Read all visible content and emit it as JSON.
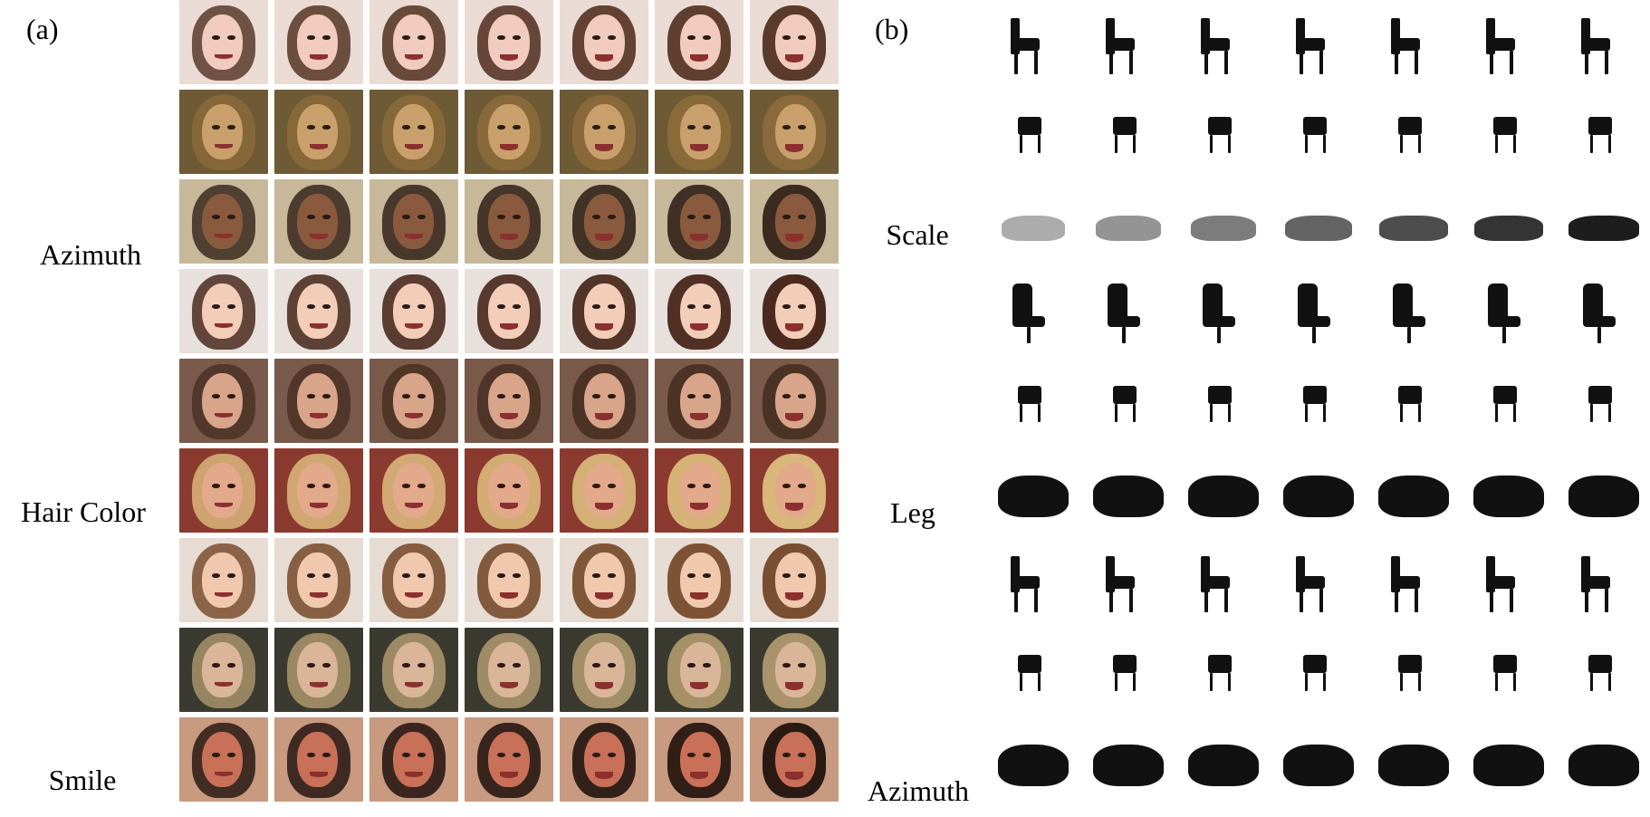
{
  "figure": {
    "panels": [
      {
        "label": "(a)",
        "rows": 9,
        "cols": 7,
        "row_labels": [
          {
            "text": "Azimuth",
            "row": 2
          },
          {
            "text": "Hair Color",
            "row": 5
          },
          {
            "text": "Smile",
            "row": 8
          }
        ],
        "row_styles": [
          {
            "bg": "#eadbd5",
            "hair": "#5a3a2a",
            "skin": "#f0cbbe"
          },
          {
            "bg": "#6e5a35",
            "hair": "#8a6a3a",
            "skin": "#c9a06b"
          },
          {
            "bg": "#c8b89a",
            "hair": "#3a2a20",
            "skin": "#8a5a3e"
          },
          {
            "bg": "#e8e0dc",
            "hair": "#4a2a1e",
            "skin": "#f2cdb8"
          },
          {
            "bg": "#7a5a4a",
            "hair": "#4a3224",
            "skin": "#d8a48a"
          },
          {
            "bg": "#8a3a2e",
            "hair": "#d9b67a",
            "skin": "#e2a98a"
          },
          {
            "bg": "#e6dcd4",
            "hair": "#7a4e30",
            "skin": "#f0c8ae"
          },
          {
            "bg": "#3a3a30",
            "hair": "#a8936a",
            "skin": "#d9b59a"
          },
          {
            "bg": "#c89a80",
            "hair": "#2a1a14",
            "skin": "#c87058"
          }
        ]
      },
      {
        "label": "(b)",
        "rows": 9,
        "cols": 7,
        "row_labels": [
          {
            "text": "Scale",
            "row": 2
          },
          {
            "text": "Leg",
            "row": 5
          },
          {
            "text": "Azimuth",
            "row": 8
          }
        ],
        "row_shapes": [
          "chair-side",
          "chair-small",
          "sofa-light",
          "office-chair",
          "chair-small",
          "sofa",
          "chair-ornate",
          "stool",
          "sofa"
        ]
      }
    ]
  }
}
